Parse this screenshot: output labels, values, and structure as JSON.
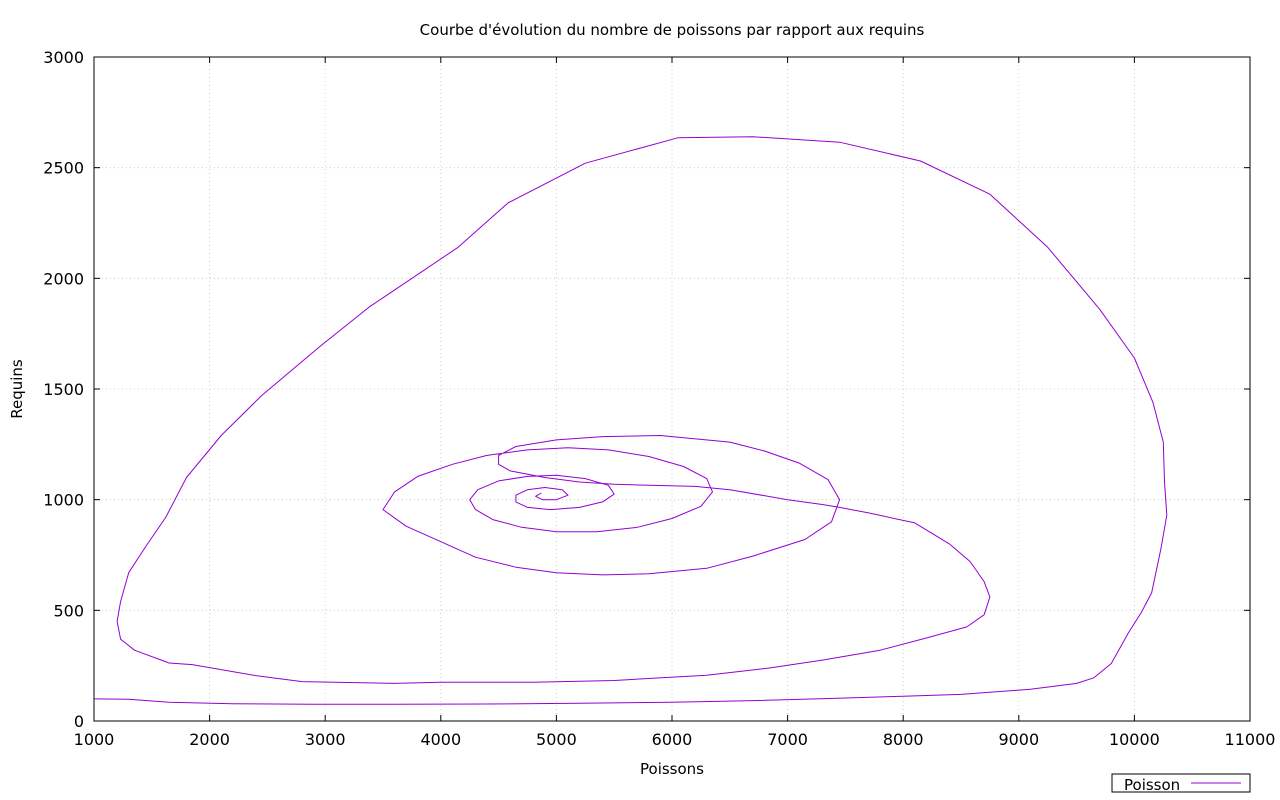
{
  "chart_data": {
    "type": "line",
    "title": "Courbe d'évolution du nombre de poissons par rapport aux requins",
    "xlabel": "Poissons",
    "ylabel": "Requins",
    "xlim": [
      1000,
      11000
    ],
    "ylim": [
      0,
      3000
    ],
    "xticks": [
      "1000",
      "2000",
      "3000",
      "4000",
      "5000",
      "6000",
      "7000",
      "8000",
      "9000",
      "10000",
      "11000"
    ],
    "yticks": [
      "0",
      "500",
      "1000",
      "1500",
      "2000",
      "2500",
      "3000"
    ],
    "grid": true,
    "legend_position": "bottom-right",
    "colors": {
      "series": "#9400d3"
    },
    "series": [
      {
        "name": "Poisson",
        "points": [
          [
            1000,
            100
          ],
          [
            1300,
            98
          ],
          [
            1650,
            85
          ],
          [
            2200,
            78
          ],
          [
            2900,
            76
          ],
          [
            3600,
            76
          ],
          [
            4400,
            77
          ],
          [
            5200,
            80
          ],
          [
            6000,
            85
          ],
          [
            6700,
            92
          ],
          [
            7400,
            102
          ],
          [
            8000,
            112
          ],
          [
            8500,
            120
          ],
          [
            9100,
            143
          ],
          [
            9500,
            170
          ],
          [
            9650,
            195
          ],
          [
            9800,
            260
          ],
          [
            9950,
            400
          ],
          [
            10060,
            490
          ],
          [
            10150,
            580
          ],
          [
            10230,
            780
          ],
          [
            10280,
            930
          ],
          [
            10260,
            1080
          ],
          [
            10250,
            1260
          ],
          [
            10160,
            1440
          ],
          [
            10000,
            1640
          ],
          [
            9700,
            1860
          ],
          [
            9250,
            2140
          ],
          [
            8750,
            2380
          ],
          [
            8150,
            2530
          ],
          [
            7450,
            2615
          ],
          [
            6700,
            2640
          ],
          [
            6050,
            2635
          ],
          [
            5250,
            2520
          ],
          [
            4580,
            2340
          ],
          [
            4150,
            2140
          ],
          [
            3380,
            1870
          ],
          [
            2950,
            1690
          ],
          [
            2450,
            1470
          ],
          [
            2100,
            1290
          ],
          [
            1800,
            1100
          ],
          [
            1620,
            920
          ],
          [
            1450,
            790
          ],
          [
            1300,
            670
          ],
          [
            1230,
            540
          ],
          [
            1200,
            450
          ],
          [
            1230,
            370
          ],
          [
            1350,
            320
          ],
          [
            1650,
            262
          ],
          [
            1850,
            255
          ],
          [
            2400,
            205
          ],
          [
            2800,
            178
          ],
          [
            3600,
            170
          ],
          [
            4000,
            175
          ],
          [
            4800,
            175
          ],
          [
            5500,
            183
          ],
          [
            6300,
            207
          ],
          [
            6850,
            240
          ],
          [
            7300,
            275
          ],
          [
            7800,
            320
          ],
          [
            8200,
            375
          ],
          [
            8550,
            425
          ],
          [
            8700,
            480
          ],
          [
            8750,
            560
          ],
          [
            8700,
            630
          ],
          [
            8580,
            720
          ],
          [
            8400,
            800
          ],
          [
            8100,
            895
          ],
          [
            7700,
            940
          ],
          [
            7450,
            965
          ],
          [
            7300,
            978
          ],
          [
            7000,
            1000
          ],
          [
            6500,
            1045
          ],
          [
            6200,
            1060
          ],
          [
            5800,
            1065
          ],
          [
            5500,
            1070
          ],
          [
            5200,
            1080
          ],
          [
            4900,
            1100
          ],
          [
            4600,
            1130
          ],
          [
            4500,
            1160
          ],
          [
            4500,
            1200
          ],
          [
            4650,
            1240
          ],
          [
            5000,
            1270
          ],
          [
            5400,
            1285
          ],
          [
            5900,
            1290
          ],
          [
            6500,
            1260
          ],
          [
            6800,
            1220
          ],
          [
            7100,
            1165
          ],
          [
            7350,
            1090
          ],
          [
            7450,
            1000
          ],
          [
            7380,
            900
          ],
          [
            7150,
            820
          ],
          [
            6700,
            745
          ],
          [
            6300,
            690
          ],
          [
            5800,
            665
          ],
          [
            5400,
            660
          ],
          [
            5000,
            670
          ],
          [
            4650,
            695
          ],
          [
            4300,
            740
          ],
          [
            4000,
            810
          ],
          [
            3700,
            880
          ],
          [
            3500,
            955
          ],
          [
            3600,
            1035
          ],
          [
            3800,
            1105
          ],
          [
            4100,
            1160
          ],
          [
            4400,
            1200
          ],
          [
            4750,
            1225
          ],
          [
            5100,
            1235
          ],
          [
            5450,
            1225
          ],
          [
            5800,
            1195
          ],
          [
            6100,
            1150
          ],
          [
            6300,
            1095
          ],
          [
            6350,
            1035
          ],
          [
            6250,
            970
          ],
          [
            6000,
            915
          ],
          [
            5700,
            875
          ],
          [
            5350,
            855
          ],
          [
            5000,
            855
          ],
          [
            4700,
            875
          ],
          [
            4450,
            910
          ],
          [
            4300,
            955
          ],
          [
            4250,
            1000
          ],
          [
            4320,
            1045
          ],
          [
            4500,
            1085
          ],
          [
            4750,
            1105
          ],
          [
            5000,
            1110
          ],
          [
            5250,
            1095
          ],
          [
            5450,
            1065
          ],
          [
            5500,
            1025
          ],
          [
            5400,
            990
          ],
          [
            5200,
            965
          ],
          [
            4950,
            955
          ],
          [
            4750,
            965
          ],
          [
            4650,
            990
          ],
          [
            4650,
            1020
          ],
          [
            4750,
            1045
          ],
          [
            4900,
            1055
          ],
          [
            5050,
            1045
          ],
          [
            5100,
            1020
          ],
          [
            5000,
            1000
          ],
          [
            4880,
            1000
          ],
          [
            4820,
            1015
          ],
          [
            4870,
            1030
          ]
        ]
      }
    ]
  }
}
